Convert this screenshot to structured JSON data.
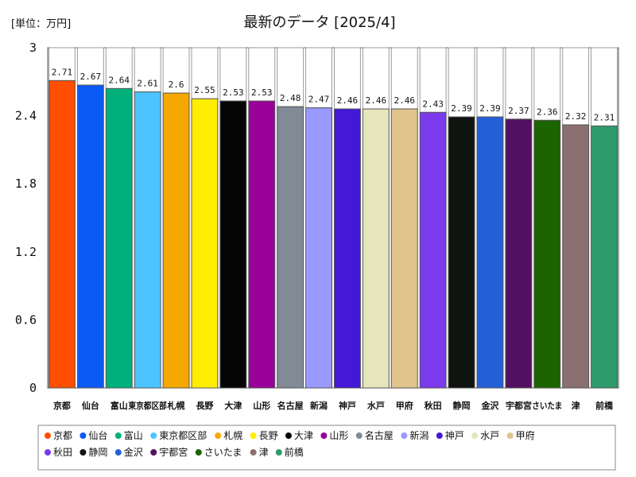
{
  "chart_data": {
    "type": "bar",
    "title": "最新のデータ [2025/4]",
    "unit_label": "[単位：万円]",
    "xlabel": "",
    "ylabel": "",
    "ylim": [
      0,
      3
    ],
    "yticks": [
      0,
      0.6,
      1.2,
      1.8,
      2.4,
      3
    ],
    "ytick_labels": [
      "0",
      "0.6",
      "1.2",
      "1.8",
      "2.4",
      "3"
    ],
    "grid": false,
    "legend_position": "bottom",
    "categories": [
      "京都",
      "仙台",
      "富山",
      "東京都区部",
      "札幌",
      "長野",
      "大津",
      "山形",
      "名古屋",
      "新潟",
      "神戸",
      "水戸",
      "甲府",
      "秋田",
      "静岡",
      "金沢",
      "宇都宮",
      "さいたま",
      "津",
      "前橋"
    ],
    "tick_labels": [
      "京都",
      "仙台",
      "富山",
      "東京都区部",
      "札幌",
      "長野",
      "大津",
      "山形",
      "名古屋",
      "新潟",
      "神戸",
      "水戸",
      "甲府",
      "秋田",
      "静岡",
      "金沢",
      "宇都宮",
      "さいたま",
      "津",
      "前橋"
    ],
    "values": [
      2.71,
      2.67,
      2.64,
      2.61,
      2.6,
      2.55,
      2.53,
      2.53,
      2.48,
      2.47,
      2.46,
      2.46,
      2.46,
      2.43,
      2.39,
      2.39,
      2.37,
      2.36,
      2.32,
      2.31
    ],
    "value_labels": [
      "2.71",
      "2.67",
      "2.64",
      "2.61",
      "2.6",
      "2.55",
      "2.53",
      "2.53",
      "2.48",
      "2.47",
      "2.46",
      "2.46",
      "2.46",
      "2.43",
      "2.39",
      "2.39",
      "2.37",
      "2.36",
      "2.32",
      "2.31"
    ],
    "colors": [
      "#ff4e00",
      "#0a5af5",
      "#00b07a",
      "#4cc4ff",
      "#f5a800",
      "#ffee00",
      "#050505",
      "#990099",
      "#808b96",
      "#9999ff",
      "#4418d6",
      "#e6e6bc",
      "#e0c48c",
      "#7b3aeb",
      "#0f1410",
      "#2360d8",
      "#541060",
      "#1c6400",
      "#8a7070",
      "#2f9a6c"
    ]
  }
}
